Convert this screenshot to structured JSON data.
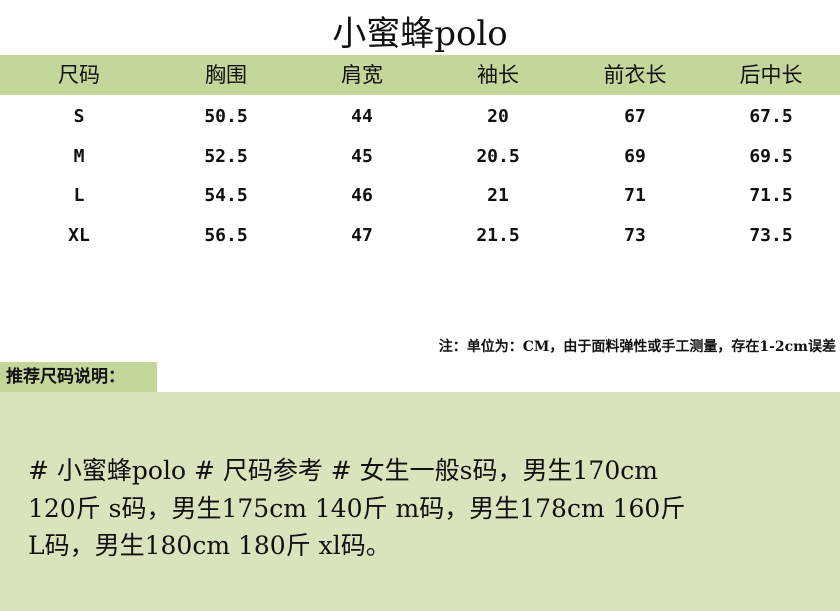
{
  "title": "小蜜蜂polo",
  "table": {
    "headers": [
      "尺码",
      "胸围",
      "肩宽",
      "袖长",
      "前衣长",
      "后中长"
    ],
    "rows": [
      [
        "S",
        "50.5",
        "44",
        "20",
        "67",
        "67.5"
      ],
      [
        "M",
        "52.5",
        "45",
        "20.5",
        "69",
        "69.5"
      ],
      [
        "L",
        "54.5",
        "46",
        "21",
        "71",
        "71.5"
      ],
      [
        "XL",
        "56.5",
        "47",
        "21.5",
        "73",
        "73.5"
      ]
    ]
  },
  "note": "注：单位为：CM，由于面料弹性或手工测量，存在1-2cm误差",
  "recommendation": {
    "label": "推荐尺码说明：",
    "lines": [
      "# 小蜜蜂polo # 尺码参考 # 女生一般s码，男生170cm",
      "120斤 s码，男生175cm 140斤 m码，男生178cm 160斤",
      "L码，男生180cm 180斤 xl码。"
    ]
  },
  "colors": {
    "header_green": "#c4d79b",
    "panel_green": "#d8e4bc"
  }
}
